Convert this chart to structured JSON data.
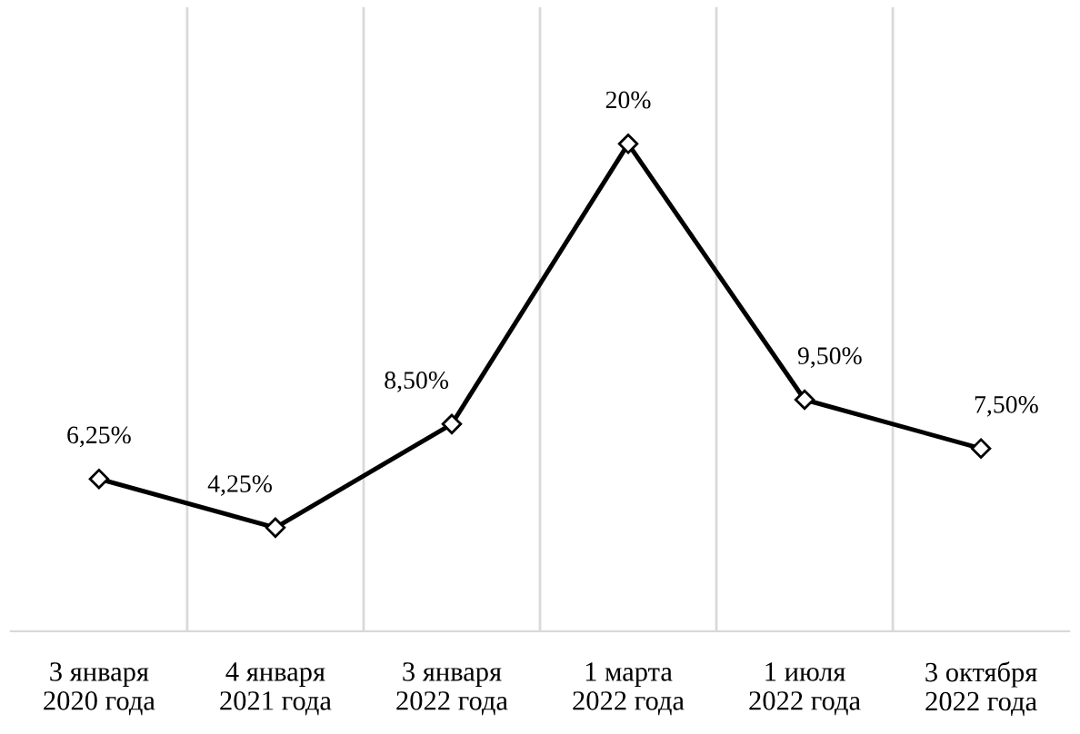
{
  "chart_data": {
    "type": "line",
    "categories": [
      "3 января\n2020 года",
      "4 января\n2021 года",
      "3 января\n2022 года",
      "1 марта\n2022 года",
      "1 июля\n2022 года",
      "3 октября\n2022 года"
    ],
    "values": [
      6.25,
      4.25,
      8.5,
      20,
      9.5,
      7.5
    ],
    "value_labels": [
      "6,25%",
      "4,25%",
      "8,50%",
      "20%",
      "9,50%",
      "7,50%"
    ],
    "color": "#000000",
    "marker": "diamond",
    "line_style": "solid",
    "grid": "x"
  }
}
